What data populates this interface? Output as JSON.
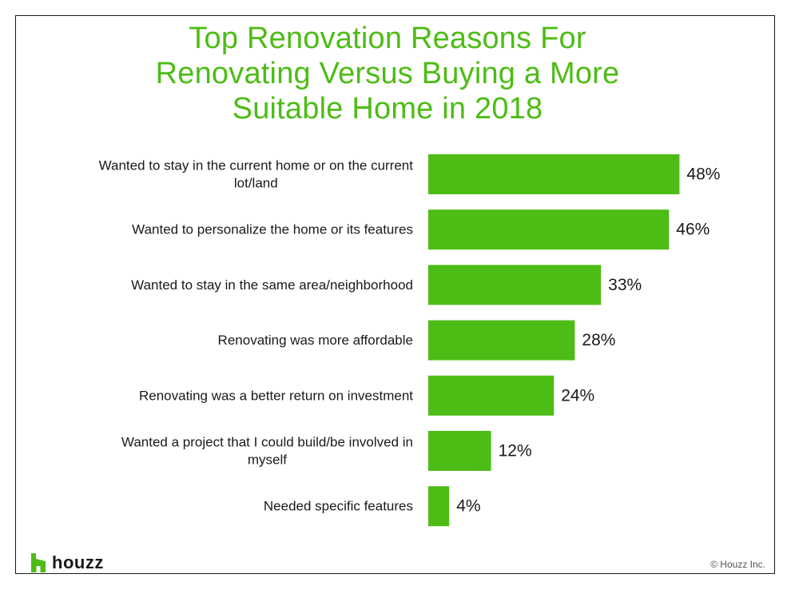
{
  "title_lines": [
    "Top Renovation Reasons For",
    "Renovating Versus Buying a More",
    "Suitable Home in 2018"
  ],
  "brand": {
    "name": "houzz",
    "accent_color": "#4dbc15",
    "logo_icon": "houzz-h-icon"
  },
  "copyright": "© Houzz Inc.",
  "chart_data": {
    "type": "bar",
    "orientation": "horizontal",
    "title": "Top Renovation Reasons For Renovating Versus Buying a More Suitable Home in 2018",
    "categories": [
      [
        "Wanted to stay in the current home or on the current",
        "lot/land"
      ],
      [
        "Wanted to personalize the home or its features"
      ],
      [
        "Wanted to stay in the same area/neighborhood"
      ],
      [
        "Renovating was more affordable"
      ],
      [
        "Renovating was a better return on investment"
      ],
      [
        "Wanted a project that I could build/be involved in",
        "myself"
      ],
      [
        "Needed specific features"
      ]
    ],
    "values": [
      48,
      46,
      33,
      28,
      24,
      12,
      4
    ],
    "value_labels": [
      "48%",
      "46%",
      "33%",
      "28%",
      "24%",
      "12%",
      "4%"
    ],
    "unit": "%",
    "bar_color": "#4dbc15",
    "xlim": [
      0,
      100
    ],
    "grid": false,
    "legend": "none"
  }
}
